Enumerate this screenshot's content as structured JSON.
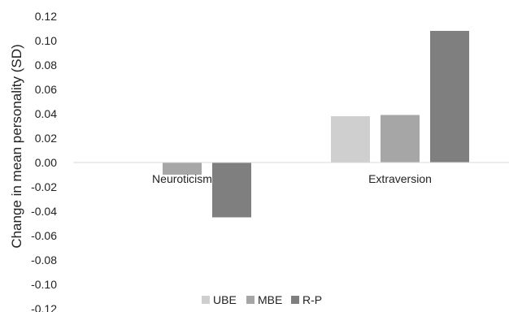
{
  "chart_data": {
    "type": "bar",
    "title": "",
    "xlabel": "",
    "ylabel": "Change in mean personality (SD)",
    "ylim": [
      -0.12,
      0.12
    ],
    "yticks": [
      0.12,
      0.1,
      0.08,
      0.06,
      0.04,
      0.02,
      0.0,
      -0.02,
      -0.04,
      -0.06,
      -0.08,
      -0.1,
      -0.12
    ],
    "ytick_labels": [
      "0.12",
      "0.10",
      "0.08",
      "0.06",
      "0.04",
      "0.02",
      "0.00",
      "-0.02",
      "-0.04",
      "-0.06",
      "-0.08",
      "-0.10",
      "-0.12"
    ],
    "categories": [
      "Neuroticism",
      "Extraversion"
    ],
    "series": [
      {
        "name": "UBE",
        "color": "#cfcfcf",
        "values": [
          0.0,
          0.038
        ]
      },
      {
        "name": "MBE",
        "color": "#a6a6a6",
        "values": [
          -0.01,
          0.039
        ]
      },
      {
        "name": "R-P",
        "color": "#7f7f7f",
        "values": [
          -0.045,
          0.108
        ]
      }
    ],
    "legend_position": "bottom",
    "grid": false
  }
}
